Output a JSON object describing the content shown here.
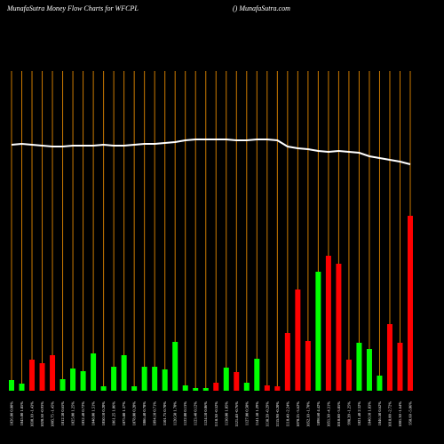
{
  "chart_data": {
    "type": "bar",
    "title": "MunafaSutra  Money Flow  Charts for WFCPL",
    "subtitle": "() MunafaSutra.com",
    "categories": [
      "1026.00 0.00%",
      "1045.00 1.85%",
      "1030.10 -1.43%",
      "1020.50 -0.93%",
      "1005.75 -1.45%",
      "1012.30 0.65%",
      "1025.00 1.25%",
      "1032.40 0.72%",
      "1048.00 1.51%",
      "1050.10 0.20%",
      "1061.25 1.06%",
      "1075.80 1.37%",
      "1078.00 0.20%",
      "1086.40 0.78%",
      "1094.10 0.71%",
      "1101.75 0.70%",
      "1120.50 1.70%",
      "1122.00 0.13%",
      "1123.40 0.12%",
      "1124.10 0.06%",
      "1118.30 -0.52%",
      "1130.00 1.05%",
      "1121.40 -0.76%",
      "1127.00 0.50%",
      "1141.50 1.29%",
      "1138.20 -0.29%",
      "1135.90 -0.20%",
      "1110.40 -2.24%",
      "1070.25 -3.62%",
      "1052.10 -1.70%",
      "1098.60 4.42%",
      "1051.30 -4.31%",
      "1010.80 -3.85%",
      "998.20 -1.25%",
      "1021.40 2.32%",
      "1040.10 1.83%",
      "1046.50 0.62%",
      "1018.00 -2.72%",
      "1001.30 -1.64%",
      "950.60 -5.06%"
    ],
    "values": [
      12,
      8,
      35,
      31,
      40,
      13,
      25,
      22,
      42,
      5,
      27,
      40,
      5,
      27,
      27,
      24,
      55,
      6,
      3,
      3,
      9,
      26,
      21,
      9,
      36,
      6,
      5,
      65,
      114,
      56,
      134,
      152,
      143,
      35,
      54,
      47,
      17,
      75,
      54,
      197
    ],
    "colors": [
      "#00ff00",
      "#00ff00",
      "#ff0000",
      "#ff0000",
      "#ff0000",
      "#00ff00",
      "#00ff00",
      "#00ff00",
      "#00ff00",
      "#00ff00",
      "#00ff00",
      "#00ff00",
      "#00ff00",
      "#00ff00",
      "#00ff00",
      "#00ff00",
      "#00ff00",
      "#00ff00",
      "#00ff00",
      "#00ff00",
      "#ff0000",
      "#00ff00",
      "#ff0000",
      "#00ff00",
      "#00ff00",
      "#ff0000",
      "#ff0000",
      "#ff0000",
      "#ff0000",
      "#ff0000",
      "#00ff00",
      "#ff0000",
      "#ff0000",
      "#ff0000",
      "#00ff00",
      "#00ff00",
      "#00ff00",
      "#ff0000",
      "#ff0000",
      "#ff0000"
    ],
    "line": {
      "color": "#ffffff",
      "values": [
        277,
        278,
        277,
        276,
        275,
        275,
        276,
        276,
        276,
        277,
        276,
        276,
        277,
        278,
        278,
        279,
        280,
        282,
        283,
        283,
        283,
        283,
        282,
        282,
        283,
        283,
        282,
        275,
        273,
        272,
        270,
        269,
        270,
        269,
        268,
        264,
        262,
        260,
        258,
        255
      ]
    },
    "grid_color": "#cc7a00",
    "ylim": [
      0,
      300
    ]
  }
}
